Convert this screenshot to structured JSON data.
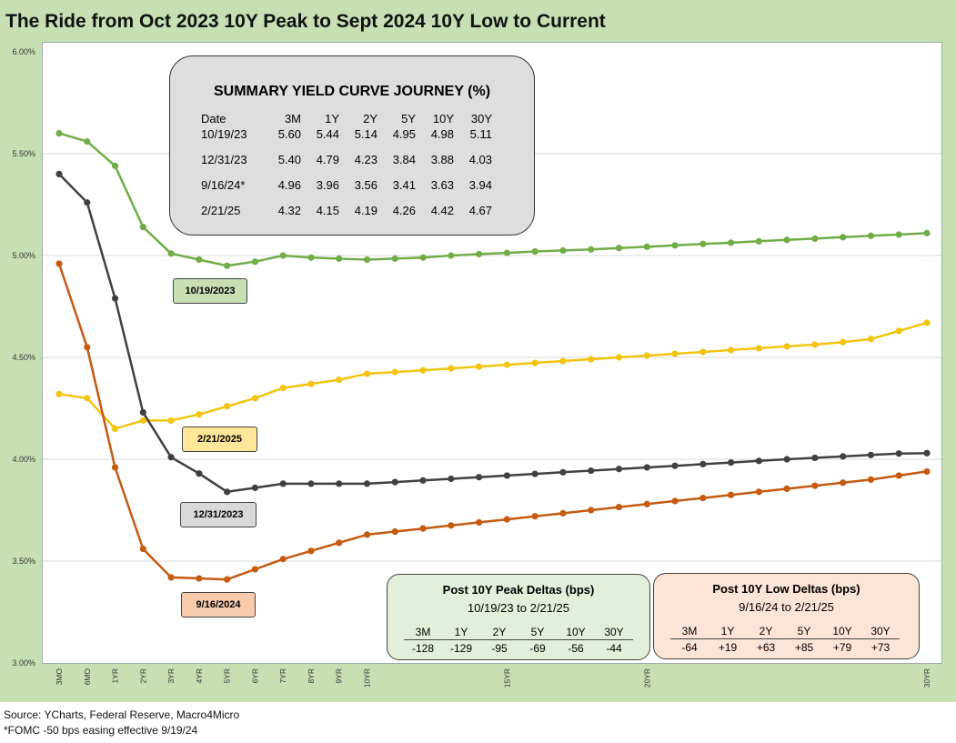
{
  "title": "The Ride from Oct 2023 10Y Peak to Sept 2024 10Y Low to Current",
  "source": "Source: YCharts, Federal Reserve, Macro4Micro",
  "footnote": "*FOMC -50 bps easing effective  9/19/24",
  "colors": {
    "frame": "#c6e0b4",
    "oct2023": "#70ad47",
    "dec2023": "#404040",
    "sep2024": "#c55a11",
    "feb2025": "#f2c40f"
  },
  "summary": {
    "title": "SUMMARY YIELD CURVE JOURNEY (%)",
    "headers": [
      "Date",
      "3M",
      "1Y",
      "2Y",
      "5Y",
      "10Y",
      "30Y"
    ],
    "rows": [
      [
        "10/19/23",
        "5.60",
        "5.44",
        "5.14",
        "4.95",
        "4.98",
        "5.11"
      ],
      [
        "12/31/23",
        "5.40",
        "4.79",
        "4.23",
        "3.84",
        "3.88",
        "4.03"
      ],
      [
        "9/16/24*",
        "4.96",
        "3.96",
        "3.56",
        "3.41",
        "3.63",
        "3.94"
      ],
      [
        "2/21/25",
        "4.32",
        "4.15",
        "4.19",
        "4.26",
        "4.42",
        "4.67"
      ]
    ]
  },
  "series_labels": {
    "oct2023": "10/19/2023",
    "dec2023": "12/31/2023",
    "sep2024": "9/16/2024",
    "feb2025": "2/21/2025"
  },
  "peak_deltas": {
    "title": "Post 10Y Peak Deltas (bps)",
    "subtitle": "10/19/23  to 2/21/25",
    "headers": [
      "3M",
      "1Y",
      "2Y",
      "5Y",
      "10Y",
      "30Y"
    ],
    "values": [
      "-128",
      "-129",
      "-95",
      "-69",
      "-56",
      "-44"
    ]
  },
  "low_deltas": {
    "title": "Post 10Y Low Deltas (bps)",
    "subtitle": "9/16/24 to 2/21/25",
    "headers": [
      "3M",
      "1Y",
      "2Y",
      "5Y",
      "10Y",
      "30Y"
    ],
    "values": [
      "-64",
      "+19",
      "+63",
      "+85",
      "+79",
      "+73"
    ]
  },
  "chart_data": {
    "type": "line",
    "title": "The Ride from Oct 2023 10Y Peak to Sept 2024 10Y Low to Current",
    "x_tick_labels": [
      "3MO",
      "6MO",
      "1YR",
      "2YR",
      "3YR",
      "4YR",
      "5YR",
      "6YR",
      "7YR",
      "8YR",
      "9YR",
      "10YR",
      "15YR",
      "20YR",
      "30YR"
    ],
    "x_tick_positions": [
      0,
      1,
      2,
      3,
      4,
      5,
      6,
      7,
      8,
      9,
      10,
      11,
      16,
      21,
      31
    ],
    "x_count": 32,
    "y_ticks": [
      "3.00%",
      "3.50%",
      "4.00%",
      "4.50%",
      "5.00%",
      "5.50%",
      "6.00%"
    ],
    "ylim": [
      3.0,
      6.0
    ],
    "grid": "horizontal",
    "series": [
      {
        "name": "10/19/2023",
        "key": "oct2023",
        "values": [
          5.6,
          5.56,
          5.44,
          5.14,
          5.01,
          4.98,
          4.95,
          4.97,
          5.0,
          4.99,
          4.985,
          4.98,
          4.985,
          4.99,
          5.0,
          5.007,
          5.013,
          5.02,
          5.025,
          5.03,
          5.037,
          5.043,
          5.05,
          5.057,
          5.063,
          5.07,
          5.077,
          5.083,
          5.09,
          5.097,
          5.103,
          5.11
        ]
      },
      {
        "name": "12/31/2023",
        "key": "dec2023",
        "values": [
          5.4,
          5.26,
          4.79,
          4.23,
          4.01,
          3.93,
          3.84,
          3.86,
          3.88,
          3.88,
          3.88,
          3.88,
          3.888,
          3.896,
          3.904,
          3.912,
          3.92,
          3.928,
          3.936,
          3.944,
          3.952,
          3.96,
          3.968,
          3.976,
          3.984,
          3.992,
          4.0,
          4.007,
          4.014,
          4.021,
          4.028,
          4.03
        ]
      },
      {
        "name": "9/16/2024",
        "key": "sep2024",
        "values": [
          4.96,
          4.55,
          3.96,
          3.56,
          3.42,
          3.415,
          3.41,
          3.46,
          3.51,
          3.55,
          3.59,
          3.63,
          3.645,
          3.66,
          3.675,
          3.69,
          3.705,
          3.72,
          3.735,
          3.75,
          3.765,
          3.78,
          3.795,
          3.81,
          3.825,
          3.84,
          3.855,
          3.87,
          3.885,
          3.9,
          3.92,
          3.94
        ]
      },
      {
        "name": "2/21/2025",
        "key": "feb2025",
        "values": [
          4.32,
          4.3,
          4.15,
          4.19,
          4.19,
          4.22,
          4.26,
          4.3,
          4.35,
          4.37,
          4.39,
          4.42,
          4.428,
          4.437,
          4.446,
          4.455,
          4.464,
          4.473,
          4.482,
          4.491,
          4.5,
          4.509,
          4.518,
          4.527,
          4.536,
          4.545,
          4.554,
          4.563,
          4.575,
          4.59,
          4.63,
          4.67
        ]
      }
    ]
  }
}
